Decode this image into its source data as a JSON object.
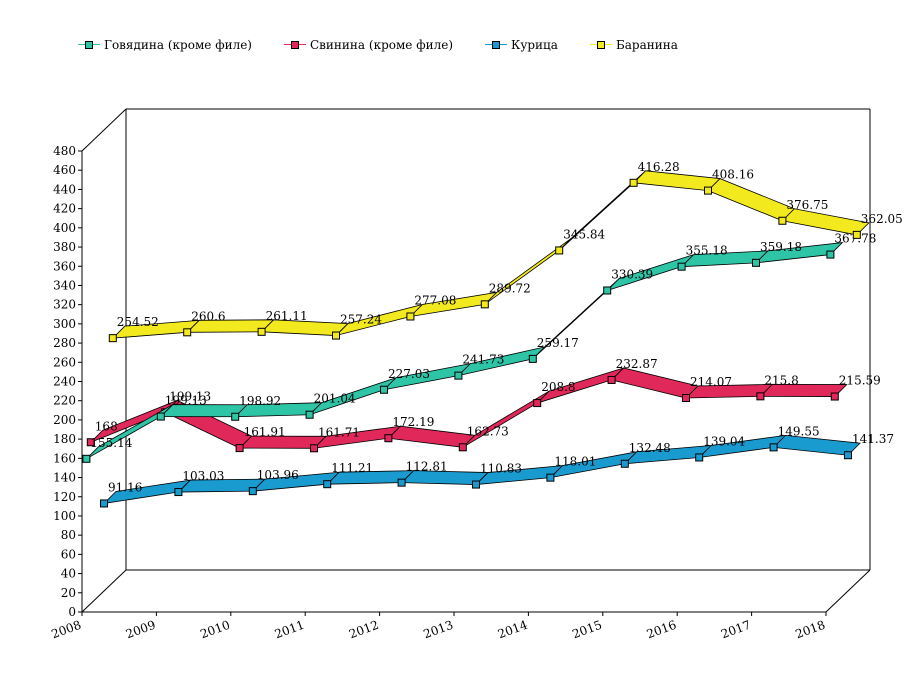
{
  "chart_data": {
    "type": "line",
    "style": "3d-ribbon",
    "title": "",
    "xlabel": "",
    "ylabel": "",
    "categories": [
      "2008",
      "2009",
      "2010",
      "2011",
      "2012",
      "2013",
      "2014",
      "2015",
      "2016",
      "2017",
      "2018"
    ],
    "ylim": [
      0,
      480
    ],
    "ytick_step": 20,
    "yticks": [
      "0",
      "20",
      "40",
      "60",
      "80",
      "100",
      "120",
      "140",
      "160",
      "180",
      "200",
      "220",
      "240",
      "260",
      "280",
      "300",
      "320",
      "340",
      "360",
      "380",
      "400",
      "420",
      "440",
      "460",
      "480"
    ],
    "legend_position": "top-left",
    "series": [
      {
        "name": "Говядина (кроме филе)",
        "color": "#2ec4a6",
        "values": [
          155.14,
          199.13,
          198.92,
          201.04,
          227.03,
          241.73,
          259.17,
          330.39,
          355.18,
          359.18,
          367.78
        ],
        "labels": [
          "155.14",
          "199.13",
          "198.92",
          "201.04",
          "227.03",
          "241.73",
          "259.17",
          "330.39",
          "355.18",
          "359.18",
          "367.78"
        ]
      },
      {
        "name": "Свинина (кроме филе)",
        "color": "#e0285a",
        "values": [
          168,
          199.13,
          161.91,
          161.71,
          172.19,
          162.73,
          208.8,
          232.87,
          214.07,
          215.8,
          215.59
        ],
        "labels": [
          "168",
          "199.13",
          "161.91",
          "161.71",
          "172.19",
          "162.73",
          "208.8",
          "232.87",
          "214.07",
          "215.8",
          "215.59"
        ]
      },
      {
        "name": "Курица",
        "color": "#1a9bd0",
        "values": [
          91.16,
          103.03,
          103.96,
          111.21,
          112.81,
          110.83,
          118.01,
          132.48,
          139.04,
          149.55,
          141.37
        ],
        "labels": [
          "91.16",
          "103.03",
          "103.96",
          "111.21",
          "112.81",
          "110.83",
          "118.01",
          "132.48",
          "139.04",
          "149.55",
          "141.37"
        ]
      },
      {
        "name": "Баранина",
        "color": "#f2ea1e",
        "values": [
          254.52,
          260.6,
          261.11,
          257.24,
          277.08,
          289.72,
          345.84,
          416.28,
          408.16,
          376.75,
          362.05
        ],
        "labels": [
          "254.52",
          "260.6",
          "261.11",
          "257.24",
          "277.08",
          "289.72",
          "345.84",
          "416.28",
          "408.16",
          "376.75",
          "362.05"
        ]
      }
    ]
  }
}
